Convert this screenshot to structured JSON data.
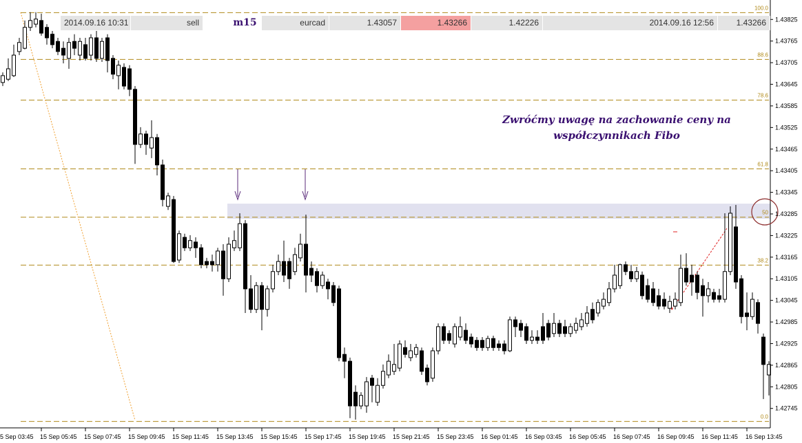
{
  "chart_data": {
    "type": "candlestick",
    "trade_row": [
      "2014.09.16 10:31",
      "sell",
      "m15",
      "eurcad",
      "1.43057",
      "1.43266",
      "1.42226",
      "2014.09.16 12:56",
      "1.43266"
    ],
    "annotation": [
      "Zwróćmy uwagę na zachowanie ceny na",
      "współczynnikach Fibo"
    ],
    "bull_color": "#ffffff",
    "bear_color": "#000000",
    "fibo_color": "#b08a1a",
    "xlim": [
      -0.5,
      139.5
    ],
    "xticks": [
      {
        "value": -1,
        "label": "5 Sep 03:45"
      },
      {
        "value": 7,
        "label": "15 Sep 05:45"
      },
      {
        "value": 15,
        "label": "15 Sep 07:45"
      },
      {
        "value": 23,
        "label": "15 Sep 09:45"
      },
      {
        "value": 31,
        "label": "15 Sep 11:45"
      },
      {
        "value": 39,
        "label": "15 Sep 13:45"
      },
      {
        "value": 47,
        "label": "15 Sep 15:45"
      },
      {
        "value": 55,
        "label": "15 Sep 17:45"
      },
      {
        "value": 63,
        "label": "15 Sep 19:45"
      },
      {
        "value": 71,
        "label": "15 Sep 21:45"
      },
      {
        "value": 79,
        "label": "15 Sep 23:45"
      },
      {
        "value": 87,
        "label": "16 Sep 01:45"
      },
      {
        "value": 95,
        "label": "16 Sep 03:45"
      },
      {
        "value": 103,
        "label": "16 Sep 05:45"
      },
      {
        "value": 111,
        "label": "16 Sep 07:45"
      },
      {
        "value": 119,
        "label": "16 Sep 09:45"
      },
      {
        "value": 127,
        "label": "16 Sep 11:45"
      },
      {
        "value": 135,
        "label": "16 Sep 13:45"
      }
    ],
    "ylim": [
      1.42691,
      1.43879
    ],
    "yticks": [
      1.43825,
      1.43765,
      1.43705,
      1.43645,
      1.43585,
      1.43525,
      1.43465,
      1.43405,
      1.43345,
      1.43285,
      1.43225,
      1.43165,
      1.43105,
      1.43045,
      1.42985,
      1.42925,
      1.42865,
      1.42805,
      1.42745
    ],
    "fibo_levels": [
      {
        "label": "100.0",
        "price": 1.43844
      },
      {
        "label": "88.6",
        "price": 1.43714
      },
      {
        "label": "78.6",
        "price": 1.43601
      },
      {
        "label": "61.8",
        "price": 1.4341
      },
      {
        "label": "50",
        "price": 1.43276
      },
      {
        "label": "38.2",
        "price": 1.43143
      },
      {
        "label": "0.0",
        "price": 1.42709
      }
    ],
    "ohlc": [
      [
        1.4365,
        1.43678,
        1.4364,
        1.43669
      ],
      [
        1.43659,
        1.43717,
        1.43654,
        1.43688
      ],
      [
        1.43669,
        1.43755,
        1.43665,
        1.43726
      ],
      [
        1.43736,
        1.43774,
        1.43726,
        1.43761
      ],
      [
        1.43745,
        1.43822,
        1.43742,
        1.43803
      ],
      [
        1.43803,
        1.43845,
        1.43793,
        1.43822
      ],
      [
        1.43812,
        1.43845,
        1.43803,
        1.43826
      ],
      [
        1.43822,
        1.43841,
        1.4378,
        1.43787
      ],
      [
        1.43803,
        1.43812,
        1.43755,
        1.43774
      ],
      [
        1.43784,
        1.43793,
        1.43745,
        1.43755
      ],
      [
        1.43764,
        1.43774,
        1.43726,
        1.43736
      ],
      [
        1.43745,
        1.43764,
        1.43703,
        1.43726
      ],
      [
        1.43717,
        1.43774,
        1.43688,
        1.43761
      ],
      [
        1.43764,
        1.43784,
        1.43726,
        1.43745
      ],
      [
        1.43726,
        1.43774,
        1.43711,
        1.43764
      ],
      [
        1.43755,
        1.43774,
        1.43711,
        1.43717
      ],
      [
        1.43726,
        1.43784,
        1.43711,
        1.43774
      ],
      [
        1.43774,
        1.43793,
        1.43707,
        1.43717
      ],
      [
        1.43717,
        1.43774,
        1.43707,
        1.43764
      ],
      [
        1.43774,
        1.43784,
        1.43678,
        1.43711
      ],
      [
        1.43717,
        1.43726,
        1.43659,
        1.43673
      ],
      [
        1.43669,
        1.43711,
        1.43631,
        1.43698
      ],
      [
        1.43692,
        1.43703,
        1.43631,
        1.4364
      ],
      [
        1.43688,
        1.43698,
        1.43612,
        1.43631
      ],
      [
        1.43631,
        1.4364,
        1.43424,
        1.43478
      ],
      [
        1.43478,
        1.43526,
        1.43468,
        1.43507
      ],
      [
        1.43507,
        1.43516,
        1.43449,
        1.43478
      ],
      [
        1.43468,
        1.43545,
        1.4344,
        1.43497
      ],
      [
        1.43497,
        1.43507,
        1.43392,
        1.43421
      ],
      [
        1.43421,
        1.43436,
        1.43306,
        1.43325
      ],
      [
        1.43306,
        1.43344,
        1.43296,
        1.43335
      ],
      [
        1.43325,
        1.43335,
        1.43149,
        1.43153
      ],
      [
        1.43157,
        1.43239,
        1.43149,
        1.4323
      ],
      [
        1.4322,
        1.4323,
        1.43182,
        1.43191
      ],
      [
        1.43191,
        1.43226,
        1.43182,
        1.43211
      ],
      [
        1.43207,
        1.4322,
        1.43163,
        1.43191
      ],
      [
        1.43191,
        1.43201,
        1.43134,
        1.43144
      ],
      [
        1.43153,
        1.43163,
        1.43134,
        1.43144
      ],
      [
        1.43153,
        1.43172,
        1.43125,
        1.43144
      ],
      [
        1.43144,
        1.43191,
        1.43125,
        1.43182
      ],
      [
        1.43182,
        1.43201,
        1.43058,
        1.43105
      ],
      [
        1.43105,
        1.4322,
        1.43096,
        1.43201
      ],
      [
        1.43191,
        1.43239,
        1.43182,
        1.43211
      ],
      [
        1.43191,
        1.43287,
        1.43182,
        1.43258
      ],
      [
        1.43258,
        1.43268,
        1.4301,
        1.43077
      ],
      [
        1.43077,
        1.43115,
        1.4301,
        1.4302
      ],
      [
        1.4302,
        1.43096,
        1.4301,
        1.43086
      ],
      [
        1.43086,
        1.43096,
        1.42962,
        1.4302
      ],
      [
        1.4302,
        1.43086,
        1.43,
        1.43077
      ],
      [
        1.43077,
        1.43144,
        1.43067,
        1.43125
      ],
      [
        1.43125,
        1.43172,
        1.43115,
        1.43153
      ],
      [
        1.43153,
        1.43211,
        1.43096,
        1.43115
      ],
      [
        1.43153,
        1.43163,
        1.43077,
        1.43105
      ],
      [
        1.43125,
        1.43191,
        1.43115,
        1.43172
      ],
      [
        1.43163,
        1.4323,
        1.43153,
        1.43201
      ],
      [
        1.43201,
        1.43283,
        1.43067,
        1.43115
      ],
      [
        1.43134,
        1.43153,
        1.43096,
        1.43115
      ],
      [
        1.43125,
        1.43134,
        1.43067,
        1.43086
      ],
      [
        1.43086,
        1.43125,
        1.43077,
        1.43115
      ],
      [
        1.43096,
        1.43105,
        1.43048,
        1.43077
      ],
      [
        1.43086,
        1.43096,
        1.43029,
        1.43039
      ],
      [
        1.43077,
        1.43086,
        1.42876,
        1.42886
      ],
      [
        1.42895,
        1.42914,
        1.42829,
        1.42876
      ],
      [
        1.42876,
        1.42886,
        1.42718,
        1.42752
      ],
      [
        1.4279,
        1.42809,
        1.42714,
        1.42752
      ],
      [
        1.42752,
        1.4279,
        1.42743,
        1.42781
      ],
      [
        1.42752,
        1.42832,
        1.42733,
        1.42819
      ],
      [
        1.42829,
        1.42838,
        1.42762,
        1.42809
      ],
      [
        1.42762,
        1.42829,
        1.42752,
        1.42809
      ],
      [
        1.42809,
        1.42867,
        1.428,
        1.42848
      ],
      [
        1.42838,
        1.42895,
        1.42829,
        1.42876
      ],
      [
        1.42848,
        1.42924,
        1.42838,
        1.42867
      ],
      [
        1.42857,
        1.42934,
        1.42848,
        1.42924
      ],
      [
        1.42914,
        1.42934,
        1.42886,
        1.42895
      ],
      [
        1.42886,
        1.42924,
        1.42876,
        1.42905
      ],
      [
        1.42895,
        1.42924,
        1.42886,
        1.42914
      ],
      [
        1.42905,
        1.42914,
        1.42838,
        1.42848
      ],
      [
        1.42857,
        1.42867,
        1.42809,
        1.42819
      ],
      [
        1.42829,
        1.42914,
        1.42819,
        1.42905
      ],
      [
        1.42905,
        1.42981,
        1.42895,
        1.42972
      ],
      [
        1.42972,
        1.42981,
        1.42924,
        1.42934
      ],
      [
        1.42953,
        1.42962,
        1.42924,
        1.42934
      ],
      [
        1.42924,
        1.42981,
        1.42914,
        1.42972
      ],
      [
        1.42943,
        1.43,
        1.42934,
        1.42972
      ],
      [
        1.42962,
        1.42981,
        1.42924,
        1.42934
      ],
      [
        1.42943,
        1.42953,
        1.42914,
        1.42924
      ],
      [
        1.42934,
        1.42943,
        1.42905,
        1.42914
      ],
      [
        1.42934,
        1.42943,
        1.42905,
        1.42914
      ],
      [
        1.42914,
        1.42947,
        1.42905,
        1.42939
      ],
      [
        1.42939,
        1.42947,
        1.42905,
        1.42914
      ],
      [
        1.42924,
        1.42934,
        1.42905,
        1.42914
      ],
      [
        1.42924,
        1.42934,
        1.42895,
        1.42905
      ],
      [
        1.42905,
        1.43,
        1.42901,
        1.42991
      ],
      [
        1.42991,
        1.43,
        1.42943,
        1.42972
      ],
      [
        1.42981,
        1.42991,
        1.42943,
        1.42962
      ],
      [
        1.42972,
        1.42981,
        1.42924,
        1.42934
      ],
      [
        1.42934,
        1.42962,
        1.42924,
        1.42943
      ],
      [
        1.42943,
        1.42962,
        1.42924,
        1.42934
      ],
      [
        1.42972,
        1.4301,
        1.42924,
        1.42934
      ],
      [
        1.42981,
        1.42991,
        1.42934,
        1.42943
      ],
      [
        1.42953,
        1.4301,
        1.42943,
        1.42981
      ],
      [
        1.42981,
        1.42991,
        1.42943,
        1.42953
      ],
      [
        1.42972,
        1.42991,
        1.42943,
        1.42953
      ],
      [
        1.42953,
        1.42981,
        1.42943,
        1.42972
      ],
      [
        1.42962,
        1.42997,
        1.42953,
        1.42981
      ],
      [
        1.42972,
        1.4301,
        1.42962,
        1.42991
      ],
      [
        1.42981,
        1.43029,
        1.42972,
        1.4301
      ],
      [
        1.4302,
        1.43039,
        1.42981,
        1.42991
      ],
      [
        1.4301,
        1.43048,
        1.43,
        1.43039
      ],
      [
        1.43029,
        1.43067,
        1.4302,
        1.43048
      ],
      [
        1.43039,
        1.43096,
        1.43029,
        1.43077
      ],
      [
        1.43077,
        1.43144,
        1.43067,
        1.43115
      ],
      [
        1.43086,
        1.43147,
        1.43077,
        1.43144
      ],
      [
        1.43144,
        1.43153,
        1.43115,
        1.43125
      ],
      [
        1.43125,
        1.43144,
        1.43096,
        1.43105
      ],
      [
        1.43105,
        1.43138,
        1.43096,
        1.43125
      ],
      [
        1.43115,
        1.43125,
        1.43048,
        1.43058
      ],
      [
        1.43086,
        1.43105,
        1.43039,
        1.43048
      ],
      [
        1.43077,
        1.43096,
        1.43029,
        1.43039
      ],
      [
        1.43058,
        1.43077,
        1.4302,
        1.43029
      ],
      [
        1.43048,
        1.43067,
        1.4302,
        1.43029
      ],
      [
        1.43023,
        1.43058,
        1.4301,
        1.43042
      ],
      [
        1.43029,
        1.43067,
        1.4302,
        1.43048
      ],
      [
        1.43039,
        1.43172,
        1.43029,
        1.43134
      ],
      [
        1.43134,
        1.43176,
        1.43086,
        1.43096
      ],
      [
        1.43115,
        1.43144,
        1.43058,
        1.43096
      ],
      [
        1.43115,
        1.43125,
        1.43048,
        1.43067
      ],
      [
        1.43086,
        1.43105,
        1.43,
        1.43058
      ],
      [
        1.43058,
        1.43096,
        1.43039,
        1.43077
      ],
      [
        1.43067,
        1.43077,
        1.43039,
        1.43048
      ],
      [
        1.43058,
        1.43077,
        1.43039,
        1.43048
      ],
      [
        1.43048,
        1.43287,
        1.43039,
        1.43125
      ],
      [
        1.43125,
        1.43306,
        1.43115,
        1.43287
      ],
      [
        1.43249,
        1.4331,
        1.43077,
        1.43096
      ],
      [
        1.43105,
        1.43115,
        1.42981,
        1.43
      ],
      [
        1.4301,
        1.43067,
        1.42962,
        1.43
      ],
      [
        1.43,
        1.43067,
        1.42991,
        1.43048
      ],
      [
        1.43039,
        1.43048,
        1.42953,
        1.42981
      ],
      [
        1.42943,
        1.42953,
        1.42771,
        1.42867
      ],
      [
        1.42838,
        1.42876,
        1.42781,
        1.42867
      ]
    ]
  }
}
